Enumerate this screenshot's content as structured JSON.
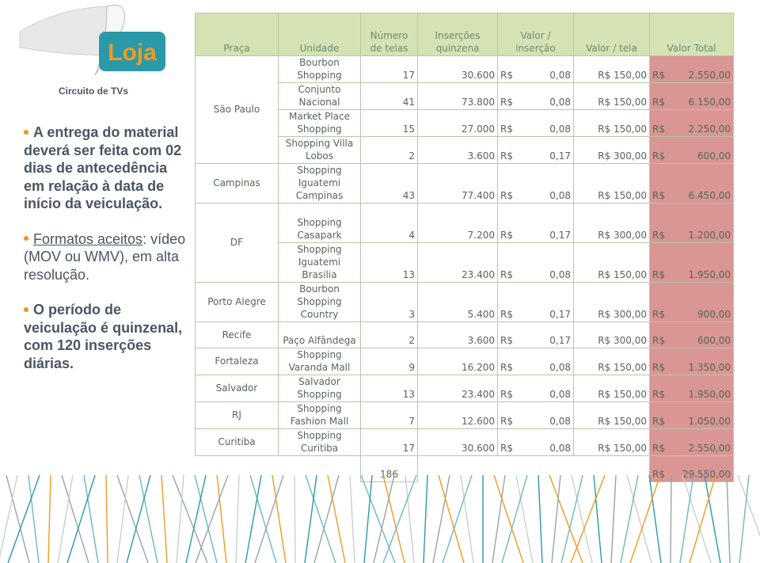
{
  "logo": {
    "brand": "Loja",
    "caption": "Circuito de TVs"
  },
  "bullets": [
    {
      "text": "A entrega do material deverá ser feita com 02 dias de antecedência em relação à data de início da veiculação."
    },
    {
      "link": "Formatos aceitos",
      "text": ": vídeo (MOV ou WMV), em alta resolução."
    },
    {
      "text": "O período de veiculação é quinzenal, com 120 inserções diárias."
    }
  ],
  "table": {
    "headers": [
      "Praça",
      "Unidade",
      "Número de telas",
      "Inserções quinzena",
      "Valor / inserção",
      "Valor / tela",
      "Valor Total"
    ],
    "groups": [
      {
        "praca": "São Paulo",
        "rows": [
          [
            "Bourbon Shopping",
            "17",
            "30.600",
            "R$ 0,08",
            "R$ 150,00",
            "R$ 2.550,00"
          ],
          [
            "Conjunto Nacional",
            "41",
            "73.800",
            "R$ 0,08",
            "R$ 150,00",
            "R$ 6.150,00"
          ],
          [
            "Market Place Shopping",
            "15",
            "27.000",
            "R$ 0,08",
            "R$ 150,00",
            "R$ 2.250,00"
          ],
          [
            "Shopping Villa Lobos",
            "2",
            "3.600",
            "R$ 0,17",
            "R$ 300,00",
            "R$ 600,00"
          ]
        ]
      },
      {
        "praca": "Campinas",
        "rows": [
          [
            "Shopping Iguatemi Campinas",
            "43",
            "77.400",
            "R$ 0,08",
            "R$ 150,00",
            "R$ 6.450,00"
          ]
        ]
      },
      {
        "praca": "DF",
        "rows": [
          [
            "Shopping Casapark",
            "4",
            "7.200",
            "R$ 0,17",
            "R$ 300,00",
            "R$ 1.200,00"
          ],
          [
            "Shopping Iguatemi Brasilia",
            "13",
            "23.400",
            "R$ 0,08",
            "R$ 150,00",
            "R$ 1.950,00"
          ]
        ]
      },
      {
        "praca": "Porto Alegre",
        "rows": [
          [
            "Bourbon Shopping Country",
            "3",
            "5.400",
            "R$ 0,17",
            "R$ 300,00",
            "R$ 900,00"
          ]
        ]
      },
      {
        "praca": "Recife",
        "rows": [
          [
            "Paço Alfândega",
            "2",
            "3.600",
            "R$ 0,17",
            "R$ 300,00",
            "R$ 600,00"
          ]
        ]
      },
      {
        "praca": "Fortaleza",
        "rows": [
          [
            "Shopping Varanda Mall",
            "9",
            "16.200",
            "R$ 0,08",
            "R$ 150,00",
            "R$ 1.350,00"
          ]
        ]
      },
      {
        "praca": "Salvador",
        "rows": [
          [
            "Salvador Shopping",
            "13",
            "23.400",
            "R$ 0,08",
            "R$ 150,00",
            "R$ 1.950,00"
          ]
        ]
      },
      {
        "praca": "RJ",
        "rows": [
          [
            "Shopping Fashion Mall",
            "7",
            "12.600",
            "R$ 0,08",
            "R$ 150,00",
            "R$ 1.050,00"
          ]
        ]
      },
      {
        "praca": "Curitiba",
        "rows": [
          [
            "Shopping Curitiba",
            "17",
            "30.600",
            "R$ 0,08",
            "R$ 150,00",
            "R$ 2.550,00"
          ]
        ]
      }
    ],
    "total": {
      "telas": "186",
      "valor_total": "R$ 29.550,00"
    }
  }
}
